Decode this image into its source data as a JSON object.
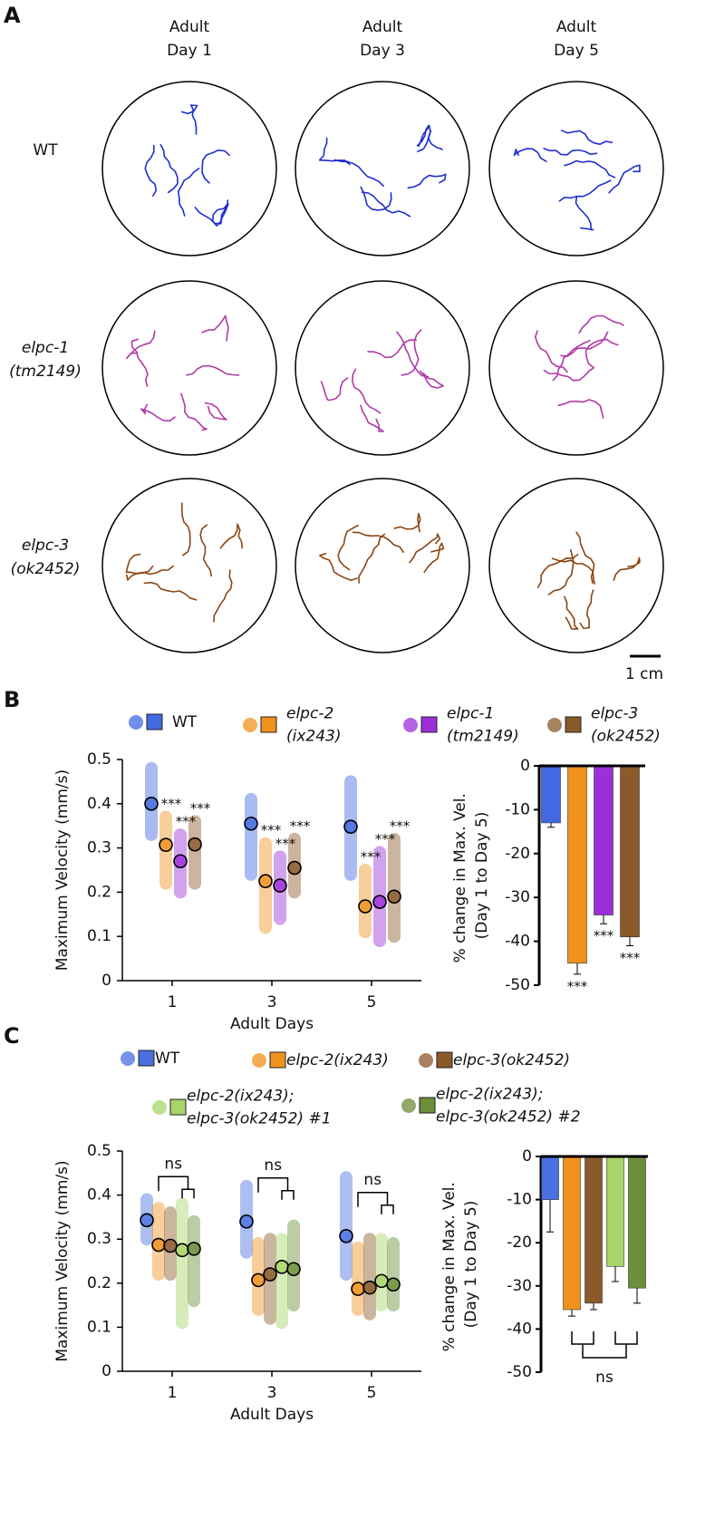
{
  "panel_a": {
    "label": "A",
    "columns": [
      [
        "Adult",
        "Day 1"
      ],
      [
        "Adult",
        "Day 3"
      ],
      [
        "Adult",
        "Day 5"
      ]
    ],
    "rows": [
      {
        "label": [
          "WT"
        ],
        "color": "#1f2ed0",
        "italic": false
      },
      {
        "label": [
          "elpc-1",
          "(tm2149)"
        ],
        "color": "#b03aa6",
        "italic": true
      },
      {
        "label": [
          "elpc-3",
          "(ok2452)"
        ],
        "color": "#8b4513",
        "italic": true
      }
    ],
    "scale_bar": "1 cm"
  },
  "chart_data": [
    {
      "type": "dot",
      "panel_label": "B",
      "ylabel": "Maximum Velocity (mm/s)",
      "xlabel": "Adult Days",
      "categories": [
        "1",
        "3",
        "5"
      ],
      "ylim": [
        0,
        0.5
      ],
      "yticks": [
        0,
        0.1,
        0.2,
        0.3,
        0.4,
        0.5
      ],
      "series": [
        {
          "name": "WT",
          "color": "#4169e1",
          "italic": false,
          "values": [
            0.4,
            0.355,
            0.348
          ],
          "ranges": [
            [
              0.33,
              0.48
            ],
            [
              0.24,
              0.41
            ],
            [
              0.24,
              0.45
            ]
          ]
        },
        {
          "name": "elpc-2 (ix243)",
          "color": "#f0921e",
          "italic": true,
          "values": [
            0.307,
            0.225,
            0.168
          ],
          "ranges": [
            [
              0.22,
              0.37
            ],
            [
              0.12,
              0.31
            ],
            [
              0.11,
              0.25
            ]
          ],
          "annotations": [
            "***",
            "***",
            "***"
          ]
        },
        {
          "name": "elpc-1 (tm2149)",
          "color": "#9b30d9",
          "italic": true,
          "values": [
            0.27,
            0.215,
            0.178
          ],
          "ranges": [
            [
              0.2,
              0.33
            ],
            [
              0.14,
              0.28
            ],
            [
              0.09,
              0.29
            ]
          ],
          "annotations": [
            "***",
            "***",
            "***"
          ]
        },
        {
          "name": "elpc-3 (ok2452)",
          "color": "#8b5a2b",
          "italic": true,
          "values": [
            0.308,
            0.255,
            0.19
          ],
          "ranges": [
            [
              0.22,
              0.36
            ],
            [
              0.2,
              0.32
            ],
            [
              0.1,
              0.32
            ]
          ],
          "annotations": [
            "***",
            "***",
            "***"
          ]
        }
      ]
    },
    {
      "type": "bar",
      "ylabel": "% change in Max. Vel. (Day 1 to Day 5)",
      "categories": [
        null,
        null,
        null,
        null
      ],
      "ylim": [
        -50,
        0
      ],
      "yticks": [
        0,
        -10,
        -20,
        -30,
        -40,
        -50
      ],
      "values": [
        -13,
        -45,
        -34,
        -39
      ],
      "errors": [
        1,
        2.5,
        2,
        2
      ],
      "colors": [
        "#4169e1",
        "#f0921e",
        "#9b30d9",
        "#8b5a2b"
      ],
      "annotations": [
        null,
        "***",
        "***",
        "***"
      ]
    },
    {
      "type": "dot",
      "panel_label": "C",
      "ylabel": "Maximum Velocity (mm/s)",
      "xlabel": "Adult Days",
      "categories": [
        "1",
        "3",
        "5"
      ],
      "ylim": [
        0,
        0.5
      ],
      "yticks": [
        0,
        0.1,
        0.2,
        0.3,
        0.4,
        0.5
      ],
      "annotations": [
        "ns",
        "ns",
        "ns"
      ],
      "series": [
        {
          "name": "WT",
          "color": "#4a6fe0",
          "italic": false,
          "values": [
            0.343,
            0.34,
            0.307
          ],
          "ranges": [
            [
              0.3,
              0.39
            ],
            [
              0.27,
              0.42
            ],
            [
              0.22,
              0.44
            ]
          ]
        },
        {
          "name": "elpc-2(ix243)",
          "color": "#f0921e",
          "italic": true,
          "values": [
            0.287,
            0.207,
            0.187
          ],
          "ranges": [
            [
              0.22,
              0.37
            ],
            [
              0.14,
              0.29
            ],
            [
              0.14,
              0.28
            ]
          ]
        },
        {
          "name": "elpc-3(ok2452)",
          "color": "#8b5a2b",
          "italic": true,
          "values": [
            0.285,
            0.22,
            0.19
          ],
          "ranges": [
            [
              0.22,
              0.36
            ],
            [
              0.12,
              0.3
            ],
            [
              0.13,
              0.3
            ]
          ]
        },
        {
          "name": "elpc-2(ix243); elpc-3(ok2452) #1",
          "color": "#a8d468",
          "italic": true,
          "values": [
            0.275,
            0.237,
            0.205
          ],
          "ranges": [
            [
              0.11,
              0.38
            ],
            [
              0.11,
              0.3
            ],
            [
              0.15,
              0.3
            ]
          ]
        },
        {
          "name": "elpc-2(ix243); elpc-3(ok2452) #2",
          "color": "#6b8f3a",
          "italic": true,
          "values": [
            0.278,
            0.232,
            0.197
          ],
          "ranges": [
            [
              0.16,
              0.34
            ],
            [
              0.15,
              0.33
            ],
            [
              0.15,
              0.29
            ]
          ]
        }
      ]
    },
    {
      "type": "bar",
      "ylabel": "% change in Max. Vel. (Day 1 to Day 5)",
      "categories": [
        null,
        null,
        null,
        null,
        null
      ],
      "ylim": [
        -50,
        0
      ],
      "yticks": [
        0,
        -10,
        -20,
        -30,
        -40,
        -50
      ],
      "values": [
        -10,
        -35.5,
        -34,
        -25.5,
        -30.5
      ],
      "errors": [
        7.5,
        1.5,
        1.5,
        3.5,
        3.5
      ],
      "colors": [
        "#4a6fe0",
        "#f0921e",
        "#8b5a2b",
        "#a8d468",
        "#6b8f3a"
      ],
      "annotations": [
        "ns"
      ]
    }
  ]
}
